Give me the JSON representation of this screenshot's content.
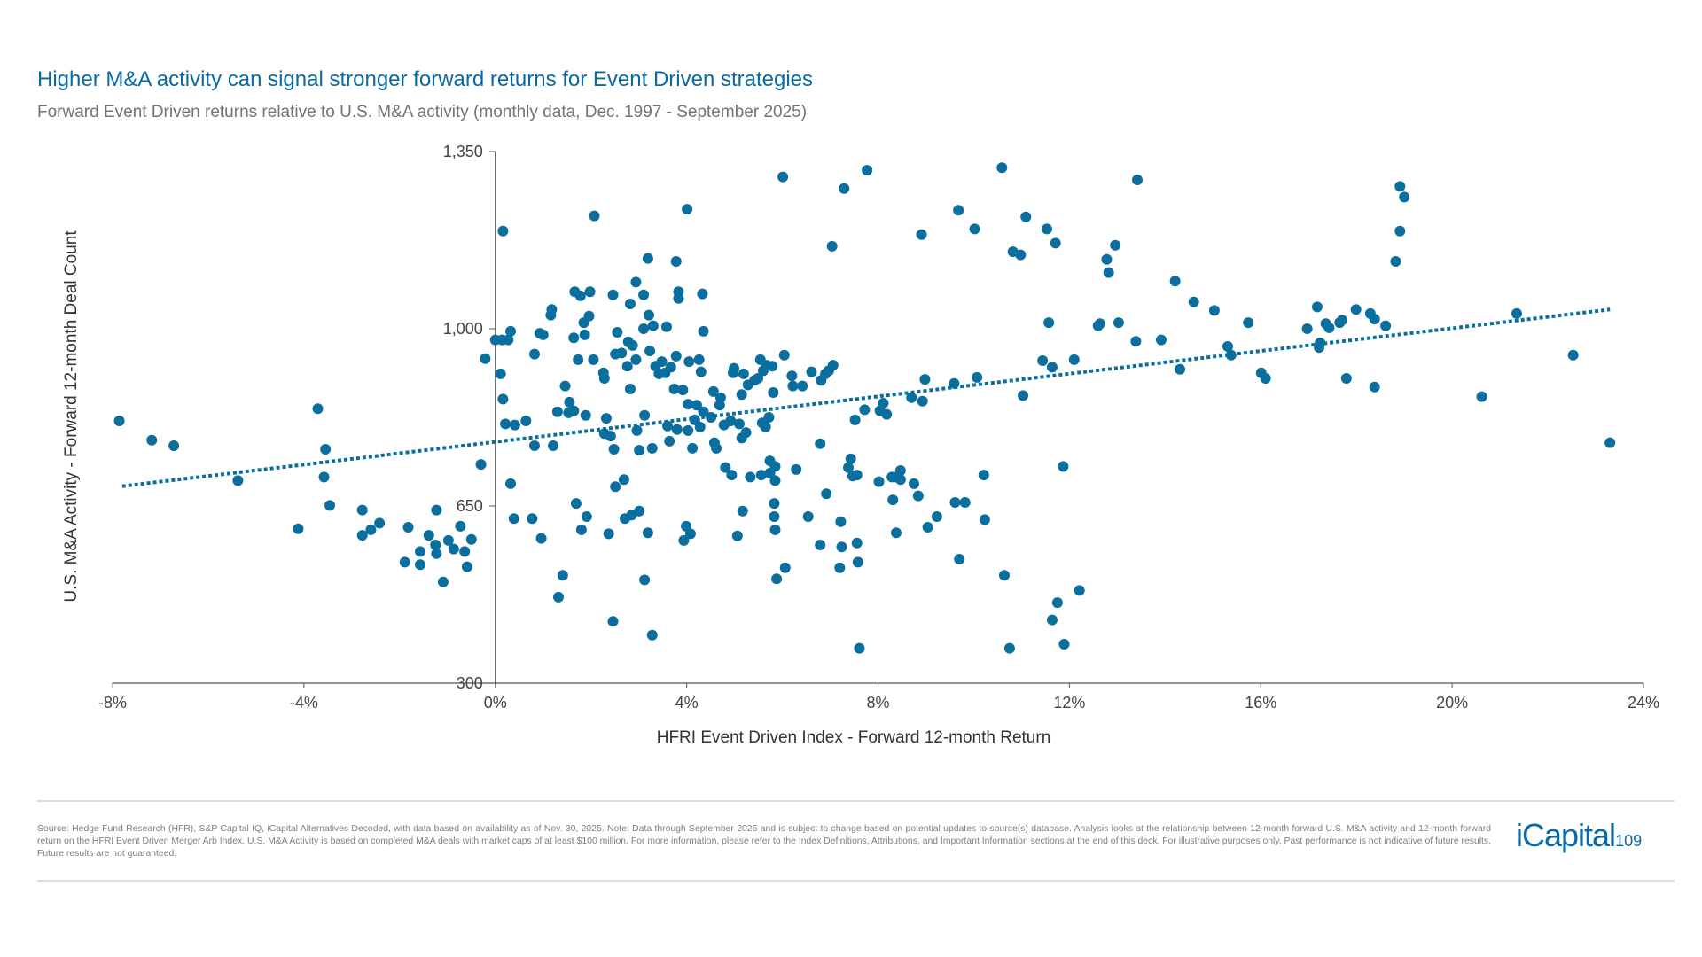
{
  "header": {
    "title": "Higher M&A activity can signal stronger forward returns for Event Driven strategies",
    "subtitle": "Forward Event Driven returns relative to U.S. M&A activity (monthly data, Dec. 1997 - September 2025)"
  },
  "footer": {
    "note": "Source: Hedge Fund Research (HFR), S&P Capital IQ, iCapital Alternatives Decoded, with data based on availability as of Nov. 30, 2025. Note: Data through September 2025 and is subject to change based on potential updates to source(s) database. Analysis looks at the relationship between 12-month forward U.S. M&A activity and 12-month forward return on the HFRI Event Driven Merger Arb Index. U.S. M&A Activity is based on completed M&A deals with market caps of at least $100 million. For more information, please refer to the Index Definitions, Attributions, and Important Information sections at the end of this deck. For illustrative purposes only. Past performance is not indicative of future results. Future results are not guaranteed.",
    "logo": "iCapital",
    "page_number": "109"
  },
  "colors": {
    "title": "#0b6aa2",
    "points": "#0a6e9e",
    "trendline": "#0a6e9e"
  },
  "chart_data": {
    "type": "scatter",
    "xlabel": "HFRI Event Driven Index - Forward 12-month Return",
    "ylabel": "U.S. M&A Activity - Forward 12-month Deal Count",
    "xlim": [
      -8,
      24
    ],
    "ylim": [
      300,
      1350
    ],
    "x_ticks": [
      -8,
      -4,
      0,
      4,
      8,
      12,
      16,
      20,
      24
    ],
    "x_tick_labels": [
      "-8%",
      "-4%",
      "0%",
      "4%",
      "8%",
      "12%",
      "16%",
      "20%",
      "24%"
    ],
    "y_ticks": [
      300,
      650,
      1000,
      1350
    ],
    "y_tick_labels": [
      "300",
      "650",
      "1,000",
      "1,350"
    ],
    "grid": false,
    "legend": "none",
    "trendline": {
      "style": "dotted",
      "x": [
        -7.8,
        23.3
      ],
      "y": [
        689,
        1038
      ]
    },
    "points": [
      [
        -7.86,
        818
      ],
      [
        -7.18,
        780
      ],
      [
        -6.72,
        769
      ],
      [
        -5.38,
        700
      ],
      [
        -4.12,
        605
      ],
      [
        -3.71,
        842
      ],
      [
        -3.55,
        762
      ],
      [
        -3.58,
        707
      ],
      [
        -3.46,
        651
      ],
      [
        -2.78,
        642
      ],
      [
        -2.78,
        592
      ],
      [
        -2.6,
        603
      ],
      [
        -2.42,
        616
      ],
      [
        -1.82,
        608
      ],
      [
        -1.89,
        539
      ],
      [
        -1.57,
        560
      ],
      [
        -1.57,
        534
      ],
      [
        -1.39,
        592
      ],
      [
        -1.25,
        573
      ],
      [
        -1.23,
        556
      ],
      [
        -1.23,
        642
      ],
      [
        -1.09,
        500
      ],
      [
        -0.98,
        582
      ],
      [
        -0.87,
        565
      ],
      [
        -0.73,
        610
      ],
      [
        -0.64,
        560
      ],
      [
        -0.59,
        530
      ],
      [
        -0.5,
        584
      ],
      [
        -0.3,
        732
      ],
      [
        -0.21,
        941
      ],
      [
        0.16,
        1193
      ],
      [
        0.14,
        978
      ],
      [
        0.11,
        911
      ],
      [
        0.16,
        861
      ],
      [
        0.27,
        978
      ],
      [
        0.32,
        995
      ],
      [
        0.0,
        978
      ],
      [
        0.21,
        812
      ],
      [
        0.41,
        810
      ],
      [
        0.32,
        694
      ],
      [
        0.39,
        625
      ],
      [
        0.64,
        818
      ],
      [
        0.77,
        625
      ],
      [
        0.82,
        950
      ],
      [
        0.82,
        769
      ],
      [
        0.93,
        991
      ],
      [
        1.0,
        988
      ],
      [
        0.96,
        586
      ],
      [
        1.16,
        1027
      ],
      [
        1.18,
        1038
      ],
      [
        1.21,
        769
      ],
      [
        1.3,
        836
      ],
      [
        1.32,
        470
      ],
      [
        1.41,
        513
      ],
      [
        1.46,
        887
      ],
      [
        1.53,
        834
      ],
      [
        1.55,
        855
      ],
      [
        1.64,
        838
      ],
      [
        1.64,
        982
      ],
      [
        1.66,
        1073
      ],
      [
        1.69,
        655
      ],
      [
        1.73,
        939
      ],
      [
        1.78,
        1065
      ],
      [
        1.8,
        603
      ],
      [
        1.85,
        1012
      ],
      [
        1.87,
        988
      ],
      [
        1.89,
        829
      ],
      [
        1.91,
        629
      ],
      [
        1.96,
        1025
      ],
      [
        1.98,
        1073
      ],
      [
        2.07,
        1223
      ],
      [
        2.05,
        939
      ],
      [
        2.26,
        913
      ],
      [
        2.28,
        902
      ],
      [
        2.28,
        793
      ],
      [
        2.32,
        823
      ],
      [
        2.37,
        595
      ],
      [
        2.41,
        788
      ],
      [
        2.46,
        422
      ],
      [
        2.46,
        1067
      ],
      [
        2.48,
        762
      ],
      [
        2.51,
        688
      ],
      [
        2.51,
        950
      ],
      [
        2.55,
        993
      ],
      [
        2.64,
        952
      ],
      [
        2.69,
        702
      ],
      [
        2.71,
        625
      ],
      [
        2.76,
        926
      ],
      [
        2.78,
        974
      ],
      [
        2.82,
        881
      ],
      [
        2.82,
        1049
      ],
      [
        2.85,
        632
      ],
      [
        2.87,
        967
      ],
      [
        2.94,
        1092
      ],
      [
        2.94,
        939
      ],
      [
        2.96,
        799
      ],
      [
        3.01,
        760
      ],
      [
        3.01,
        640
      ],
      [
        3.1,
        1000
      ],
      [
        3.1,
        1067
      ],
      [
        3.12,
        504
      ],
      [
        3.12,
        829
      ],
      [
        3.19,
        1139
      ],
      [
        3.19,
        597
      ],
      [
        3.21,
        1027
      ],
      [
        3.23,
        956
      ],
      [
        3.28,
        764
      ],
      [
        3.28,
        395
      ],
      [
        3.3,
        1006
      ],
      [
        3.35,
        926
      ],
      [
        3.42,
        911
      ],
      [
        3.48,
        935
      ],
      [
        3.55,
        913
      ],
      [
        3.58,
        1004
      ],
      [
        3.6,
        808
      ],
      [
        3.64,
        778
      ],
      [
        3.67,
        924
      ],
      [
        3.74,
        881
      ],
      [
        3.78,
        1133
      ],
      [
        3.78,
        946
      ],
      [
        3.8,
        801
      ],
      [
        3.83,
        1073
      ],
      [
        3.83,
        1060
      ],
      [
        3.92,
        879
      ],
      [
        3.94,
        582
      ],
      [
        3.99,
        610
      ],
      [
        4.01,
        1236
      ],
      [
        4.03,
        799
      ],
      [
        4.03,
        851
      ],
      [
        4.05,
        935
      ],
      [
        4.08,
        595
      ],
      [
        4.12,
        764
      ],
      [
        4.17,
        820
      ],
      [
        4.21,
        849
      ],
      [
        4.26,
        939
      ],
      [
        4.28,
        806
      ],
      [
        4.3,
        915
      ],
      [
        4.33,
        1069
      ],
      [
        4.35,
        995
      ],
      [
        4.35,
        836
      ],
      [
        4.51,
        825
      ],
      [
        4.56,
        876
      ],
      [
        4.58,
        775
      ],
      [
        4.62,
        764
      ],
      [
        4.69,
        849
      ],
      [
        4.71,
        864
      ],
      [
        4.78,
        810
      ],
      [
        4.81,
        726
      ],
      [
        4.92,
        818
      ],
      [
        4.94,
        711
      ],
      [
        4.97,
        913
      ],
      [
        4.99,
        922
      ],
      [
        5.06,
        591
      ],
      [
        5.1,
        812
      ],
      [
        5.15,
        870
      ],
      [
        5.15,
        784
      ],
      [
        5.17,
        640
      ],
      [
        5.19,
        911
      ],
      [
        5.24,
        795
      ],
      [
        5.28,
        889
      ],
      [
        5.33,
        707
      ],
      [
        5.42,
        898
      ],
      [
        5.49,
        902
      ],
      [
        5.54,
        939
      ],
      [
        5.56,
        711
      ],
      [
        5.58,
        814
      ],
      [
        5.6,
        917
      ],
      [
        5.65,
        806
      ],
      [
        5.67,
        928
      ],
      [
        5.72,
        825
      ],
      [
        5.74,
        739
      ],
      [
        5.74,
        715
      ],
      [
        5.79,
        926
      ],
      [
        5.81,
        874
      ],
      [
        5.83,
        655
      ],
      [
        5.83,
        629
      ],
      [
        5.85,
        700
      ],
      [
        5.85,
        603
      ],
      [
        5.88,
        506
      ],
      [
        5.85,
        728
      ],
      [
        6.01,
        1300
      ],
      [
        6.04,
        948
      ],
      [
        6.06,
        528
      ],
      [
        6.2,
        907
      ],
      [
        6.22,
        887
      ],
      [
        6.29,
        722
      ],
      [
        6.42,
        887
      ],
      [
        6.54,
        629
      ],
      [
        6.61,
        915
      ],
      [
        6.79,
        773
      ],
      [
        6.79,
        573
      ],
      [
        6.81,
        898
      ],
      [
        6.9,
        911
      ],
      [
        6.92,
        674
      ],
      [
        6.97,
        917
      ],
      [
        7.04,
        1163
      ],
      [
        7.06,
        928
      ],
      [
        7.2,
        528
      ],
      [
        7.22,
        619
      ],
      [
        7.24,
        569
      ],
      [
        7.29,
        1277
      ],
      [
        7.38,
        726
      ],
      [
        7.43,
        743
      ],
      [
        7.47,
        709
      ],
      [
        7.52,
        820
      ],
      [
        7.56,
        577
      ],
      [
        7.58,
        539
      ],
      [
        7.56,
        711
      ],
      [
        7.61,
        369
      ],
      [
        7.72,
        840
      ],
      [
        7.77,
        1313
      ],
      [
        8.02,
        698
      ],
      [
        8.04,
        838
      ],
      [
        8.11,
        853
      ],
      [
        8.18,
        831
      ],
      [
        8.29,
        707
      ],
      [
        8.31,
        662
      ],
      [
        8.38,
        597
      ],
      [
        8.38,
        707
      ],
      [
        8.47,
        720
      ],
      [
        8.47,
        702
      ],
      [
        8.7,
        864
      ],
      [
        8.75,
        694
      ],
      [
        8.84,
        670
      ],
      [
        8.91,
        1186
      ],
      [
        8.93,
        857
      ],
      [
        8.98,
        900
      ],
      [
        9.04,
        608
      ],
      [
        9.23,
        629
      ],
      [
        9.59,
        892
      ],
      [
        9.61,
        657
      ],
      [
        9.68,
        1234
      ],
      [
        9.7,
        545
      ],
      [
        9.82,
        657
      ],
      [
        10.02,
        1197
      ],
      [
        10.07,
        904
      ],
      [
        10.21,
        711
      ],
      [
        10.23,
        623
      ],
      [
        10.59,
        1318
      ],
      [
        10.64,
        513
      ],
      [
        10.75,
        369
      ],
      [
        10.82,
        1152
      ],
      [
        10.98,
        1146
      ],
      [
        11.03,
        868
      ],
      [
        11.09,
        1221
      ],
      [
        11.44,
        937
      ],
      [
        11.53,
        1197
      ],
      [
        11.57,
        1012
      ],
      [
        11.64,
        924
      ],
      [
        11.64,
        425
      ],
      [
        11.71,
        1169
      ],
      [
        11.75,
        459
      ],
      [
        11.87,
        728
      ],
      [
        11.89,
        377
      ],
      [
        12.1,
        939
      ],
      [
        12.21,
        483
      ],
      [
        12.6,
        1006
      ],
      [
        12.64,
        1010
      ],
      [
        12.78,
        1137
      ],
      [
        12.82,
        1111
      ],
      [
        12.96,
        1165
      ],
      [
        13.03,
        1012
      ],
      [
        13.39,
        975
      ],
      [
        13.42,
        1294
      ],
      [
        13.92,
        978
      ],
      [
        14.21,
        1094
      ],
      [
        14.31,
        920
      ],
      [
        14.6,
        1053
      ],
      [
        15.03,
        1036
      ],
      [
        15.31,
        965
      ],
      [
        15.38,
        948
      ],
      [
        15.74,
        1012
      ],
      [
        16.01,
        913
      ],
      [
        16.1,
        902
      ],
      [
        16.97,
        1000
      ],
      [
        17.18,
        1043
      ],
      [
        17.22,
        963
      ],
      [
        17.24,
        972
      ],
      [
        17.36,
        1010
      ],
      [
        17.43,
        1002
      ],
      [
        17.65,
        1012
      ],
      [
        17.7,
        1017
      ],
      [
        17.79,
        902
      ],
      [
        17.99,
        1038
      ],
      [
        18.29,
        1030
      ],
      [
        18.38,
        1019
      ],
      [
        18.38,
        885
      ],
      [
        18.61,
        1006
      ],
      [
        18.82,
        1133
      ],
      [
        18.91,
        1193
      ],
      [
        18.91,
        1281
      ],
      [
        19.0,
        1260
      ],
      [
        20.62,
        866
      ],
      [
        21.35,
        1030
      ],
      [
        22.53,
        948
      ],
      [
        23.3,
        775
      ]
    ]
  }
}
